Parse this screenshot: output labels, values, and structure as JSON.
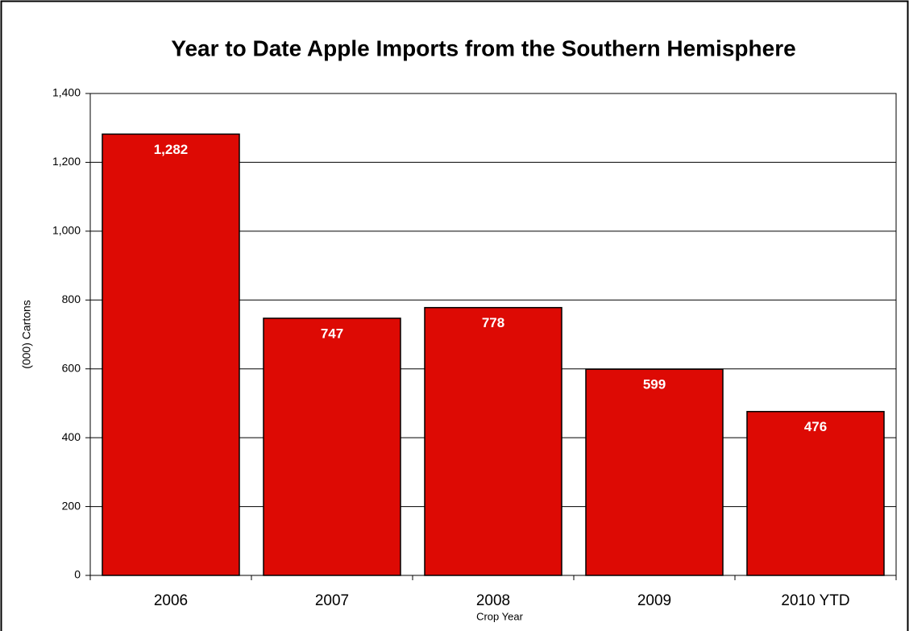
{
  "chart_data": {
    "type": "bar",
    "title": "Year to Date Apple Imports from the Southern Hemisphere",
    "x_label": "Crop Year",
    "y_label": "(000) Cartons",
    "categories": [
      "2006",
      "2007",
      "2008",
      "2009",
      "2010 YTD"
    ],
    "values": [
      1282,
      747,
      778,
      599,
      476
    ],
    "value_labels": [
      "1,282",
      "747",
      "778",
      "599",
      "476"
    ],
    "color": "#dd0a04",
    "ylim": [
      0,
      1400
    ],
    "yticks": [
      0,
      200,
      400,
      600,
      800,
      {
        "value": 1000,
        "label": "1,000"
      },
      {
        "value": 1200,
        "label": "1,200"
      },
      {
        "value": 1400,
        "label": "1,400"
      }
    ],
    "grid": true
  }
}
